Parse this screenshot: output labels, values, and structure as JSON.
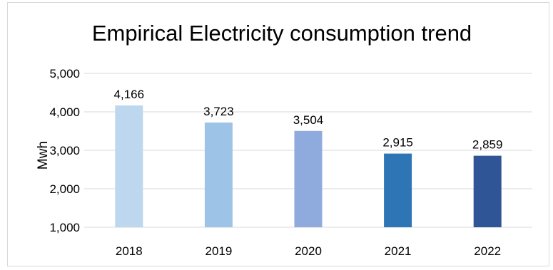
{
  "chart_data": {
    "type": "bar",
    "title": "Empirical Electricity consumption trend",
    "xlabel": "",
    "ylabel": "Mwh",
    "categories": [
      "2018",
      "2019",
      "2020",
      "2021",
      "2022"
    ],
    "values": [
      4166,
      3723,
      3504,
      2915,
      2859
    ],
    "data_labels": [
      "4,166",
      "3,723",
      "3,504",
      "2,915",
      "2,859"
    ],
    "ylim": [
      1000,
      5000
    ],
    "yticks": [
      1000,
      2000,
      3000,
      4000,
      5000
    ],
    "ytick_labels": [
      "1,000",
      "2,000",
      "3,000",
      "4,000",
      "5,000"
    ],
    "grid": true,
    "legend": "none",
    "bar_colors": [
      "#bdd7ee",
      "#9dc3e6",
      "#8faadc",
      "#2e75b6",
      "#2f5597"
    ],
    "grid_color": "#d9d9d9"
  }
}
